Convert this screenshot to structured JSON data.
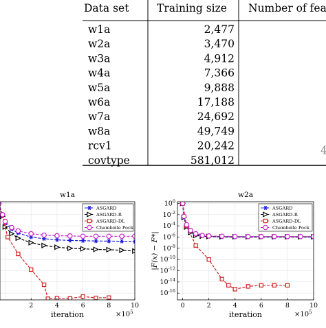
{
  "table": {
    "headers": [
      "Data set",
      "Training size",
      "Number of fea"
    ],
    "rows": [
      {
        "name": "w1a",
        "size": "2,477"
      },
      {
        "name": "w2a",
        "size": "3,470"
      },
      {
        "name": "w3a",
        "size": "4,912"
      },
      {
        "name": "w4a",
        "size": "7,366"
      },
      {
        "name": "w5a",
        "size": "9,888"
      },
      {
        "name": "w6a",
        "size": "17,188"
      },
      {
        "name": "w7a",
        "size": "24,692"
      },
      {
        "name": "w8a",
        "size": "49,749"
      },
      {
        "name": "rcv1",
        "size": "20,242"
      },
      {
        "name": "covtype",
        "size": "581,012"
      }
    ],
    "partial_feature_glyph": "4"
  },
  "chart_data": [
    {
      "type": "line",
      "title": "w1a",
      "xlabel": "iteration",
      "xscale_label": "×10",
      "xscale_exp": "5",
      "xlim": [
        -0.4,
        10
      ],
      "xticks": [
        2,
        4,
        6,
        8,
        10
      ],
      "yscale": "log",
      "ylim_log10": [
        -17.2,
        0.3
      ],
      "yticks_log10": [],
      "ylabel": "",
      "legend": {
        "placement": "top-right",
        "entries": [
          "ASGARD",
          "ASGARD-R",
          "ASGARD-DL",
          "Chambolle Pock"
        ]
      },
      "series": [
        {
          "name": "ASGARD",
          "color": "#1a1adf",
          "marker": "star",
          "dash": "4,2",
          "x": [
            -0.5,
            -0.2,
            0,
            0.5,
            1,
            2,
            3,
            4,
            5,
            6,
            7,
            8,
            9,
            10
          ],
          "log10y": [
            0,
            -2.2,
            -3.5,
            -4.6,
            -5.3,
            -6.0,
            -6.3,
            -6.5,
            -6.6,
            -6.65,
            -6.7,
            -6.72,
            -6.75,
            -6.8
          ]
        },
        {
          "name": "ASGARD-R",
          "color": "#000000",
          "marker": "triangle-right",
          "dash": "4,2",
          "x": [
            -0.5,
            -0.2,
            0,
            0.5,
            1,
            2,
            3,
            4,
            5,
            6,
            7,
            8,
            9,
            10
          ],
          "log10y": [
            0,
            -2.3,
            -4.2,
            -5.4,
            -6.2,
            -7.0,
            -7.5,
            -7.8,
            -8.0,
            -8.1,
            -8.2,
            -8.25,
            -8.35,
            -8.5
          ]
        },
        {
          "name": "ASGARD-DL",
          "color": "#d42020",
          "marker": "square",
          "dash": "4,2",
          "x": [
            -0.5,
            0.2,
            1,
            2,
            3,
            3.3,
            4,
            5,
            6,
            7,
            8
          ],
          "log10y": [
            0,
            -6.0,
            -9.0,
            -11.8,
            -14.5,
            -17.0,
            -16.9,
            -16.95,
            -16.6,
            -16.85,
            -16.8
          ]
        },
        {
          "name": "Chambolle Pock",
          "color": "#cc22cc",
          "marker": "circle",
          "dash": "4,2",
          "x": [
            -0.5,
            -0.2,
            0,
            0.5,
            1,
            2,
            3,
            4,
            5,
            6,
            7,
            8,
            9,
            10
          ],
          "log10y": [
            0,
            -2.0,
            -3.2,
            -4.3,
            -4.9,
            -5.4,
            -5.65,
            -5.75,
            -5.8,
            -5.85,
            -5.85,
            -5.85,
            -5.85,
            -5.85
          ]
        }
      ]
    },
    {
      "type": "line",
      "title": "w2a",
      "xlabel": "iteration",
      "xscale_label": "×10",
      "xscale_exp": "5",
      "xlim": [
        -0.4,
        10
      ],
      "xticks": [
        0,
        2,
        4,
        6,
        8,
        10
      ],
      "yscale": "log",
      "ylim_log10": [
        -17.2,
        0.3
      ],
      "yticks_log10": [
        0,
        -2,
        -4,
        -6,
        -8,
        -10,
        -12,
        -14,
        -16
      ],
      "ylabel": "|F(x) − F*|",
      "legend": {
        "placement": "top-right",
        "entries": [
          "ASGARD",
          "ASGARD-R",
          "ASGARD-DL",
          "Chambolle Pock"
        ]
      },
      "series": [
        {
          "name": "ASGARD",
          "color": "#1a1adf",
          "marker": "star",
          "dash": "4,2",
          "x": [
            0,
            0.1,
            0.3,
            0.6,
            1,
            1.5,
            2,
            3,
            4,
            5,
            6,
            7,
            8,
            9,
            10
          ],
          "log10y": [
            0,
            -2.5,
            -4.0,
            -5.0,
            -5.6,
            -5.8,
            -5.9,
            -6.0,
            -6.0,
            -6.0,
            -6.0,
            -6.0,
            -6.0,
            -6.0,
            -6.0
          ]
        },
        {
          "name": "ASGARD-R",
          "color": "#000000",
          "marker": "triangle-right",
          "dash": "4,2",
          "x": [
            0,
            0.1,
            0.3,
            0.6,
            1,
            1.5,
            2,
            3,
            4,
            5,
            6,
            7,
            8,
            9,
            10
          ],
          "log10y": [
            0,
            -2.5,
            -4.2,
            -5.2,
            -5.7,
            -5.85,
            -5.9,
            -5.95,
            -5.95,
            -5.95,
            -5.95,
            -5.95,
            -5.95,
            -5.95,
            -5.95
          ]
        },
        {
          "name": "ASGARD-DL",
          "color": "#d42020",
          "marker": "square",
          "dash": "4,2",
          "x": [
            0,
            0.3,
            1,
            2,
            3,
            3.5,
            4,
            5,
            6,
            7,
            8
          ],
          "log10y": [
            0,
            -4.0,
            -7.5,
            -10.0,
            -13.5,
            -14.6,
            -15.3,
            -14.8,
            -14.6,
            -14.6,
            -14.6
          ]
        },
        {
          "name": "Chambolle Pock",
          "color": "#cc22cc",
          "marker": "circle",
          "dash": "4,2",
          "x": [
            0,
            0.1,
            0.3,
            0.6,
            1,
            1.5,
            2,
            3,
            4,
            5,
            6,
            7,
            8,
            9,
            10
          ],
          "log10y": [
            0,
            -2.3,
            -3.8,
            -4.8,
            -5.4,
            -5.7,
            -5.8,
            -5.85,
            -5.9,
            -5.9,
            -5.9,
            -5.9,
            -5.9,
            -5.9,
            -5.9
          ]
        }
      ]
    }
  ]
}
